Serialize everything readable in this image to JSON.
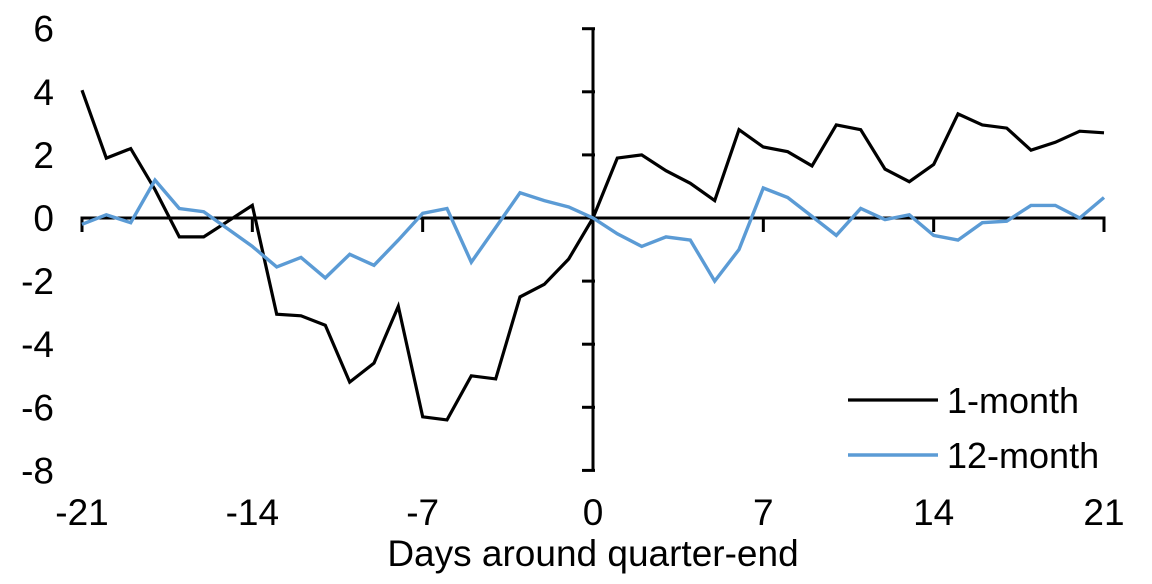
{
  "chart_data": {
    "type": "line",
    "title": "",
    "xlabel": "Days around quarter-end",
    "ylabel": "",
    "xlim": [
      -21,
      21
    ],
    "ylim": [
      -8,
      6
    ],
    "x_ticks": [
      -21,
      -14,
      -7,
      0,
      7,
      14,
      21
    ],
    "y_ticks": [
      6,
      4,
      2,
      0,
      -2,
      -4,
      -6,
      -8
    ],
    "grid": false,
    "legend_position": "lower-right",
    "axis_color": "#000000",
    "background_color": "#ffffff",
    "x": [
      -21,
      -20,
      -19,
      -18,
      -17,
      -16,
      -15,
      -14,
      -13,
      -12,
      -11,
      -10,
      -9,
      -8,
      -7,
      -6,
      -5,
      -4,
      -3,
      -2,
      -1,
      0,
      1,
      2,
      3,
      4,
      5,
      6,
      7,
      8,
      9,
      10,
      11,
      12,
      13,
      14,
      15,
      16,
      17,
      18,
      19,
      20,
      21
    ],
    "series": [
      {
        "name": "1-month",
        "color": "#000000",
        "values": [
          4.05,
          1.9,
          2.2,
          0.9,
          -0.6,
          -0.6,
          -0.1,
          0.4,
          -3.05,
          -3.1,
          -3.4,
          -5.2,
          -4.6,
          -2.8,
          -6.3,
          -6.4,
          -5.0,
          -5.1,
          -2.5,
          -2.1,
          -1.3,
          0,
          1.9,
          2.0,
          1.5,
          1.1,
          0.55,
          2.8,
          2.25,
          2.1,
          1.65,
          2.95,
          2.8,
          1.55,
          1.15,
          1.7,
          3.3,
          2.95,
          2.85,
          2.15,
          2.4,
          2.75,
          2.7
        ]
      },
      {
        "name": "12-month",
        "color": "#5B9BD5",
        "values": [
          -0.2,
          0.1,
          -0.15,
          1.2,
          0.3,
          0.2,
          -0.35,
          -0.9,
          -1.55,
          -1.25,
          -1.9,
          -1.15,
          -1.5,
          -0.7,
          0.15,
          0.3,
          -1.4,
          -0.3,
          0.8,
          0.55,
          0.35,
          0,
          -0.5,
          -0.9,
          -0.6,
          -0.7,
          -2.0,
          -1.0,
          0.95,
          0.65,
          0.05,
          -0.55,
          0.3,
          -0.05,
          0.1,
          -0.55,
          -0.7,
          -0.15,
          -0.1,
          0.4,
          0.4,
          0.0,
          0.65
        ]
      }
    ]
  }
}
